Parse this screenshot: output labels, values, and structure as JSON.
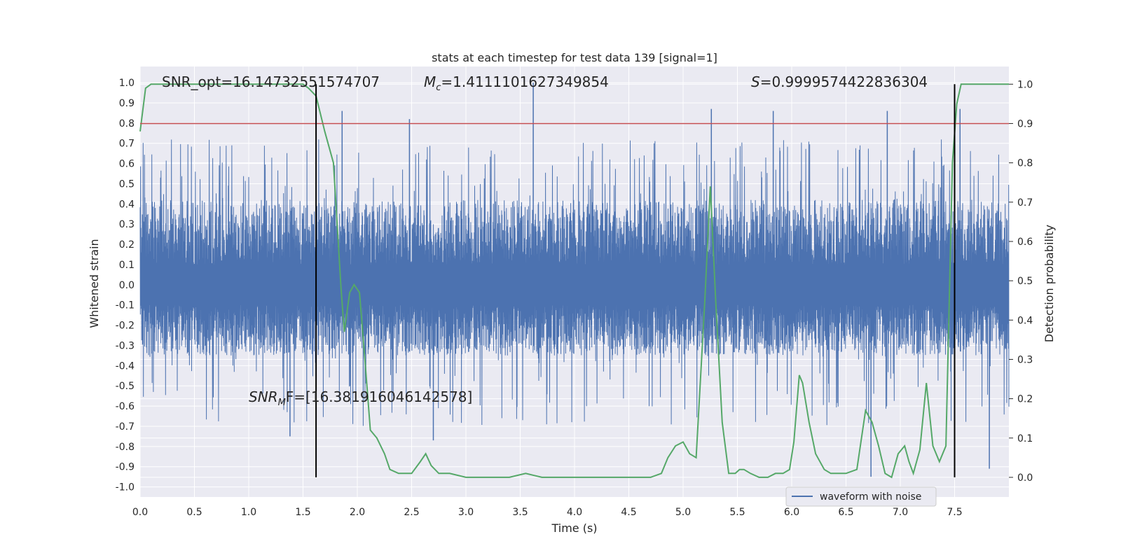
{
  "chart_data": {
    "type": "line",
    "title": "stats at each timestep for test data 139 [signal=1]",
    "xlabel": "Time (s)",
    "ylabel": "Whitened strain",
    "ylabel_right": "Detection probability",
    "xlim": [
      0.0,
      8.0
    ],
    "ylim": [
      -1.05,
      1.08
    ],
    "ylim_right": [
      -0.05,
      1.045
    ],
    "xticks": [
      "0.0",
      "0.5",
      "1.0",
      "1.5",
      "2.0",
      "2.5",
      "3.0",
      "3.5",
      "4.0",
      "4.5",
      "5.0",
      "5.5",
      "6.0",
      "6.5",
      "7.0",
      "7.5"
    ],
    "yticks": [
      "1.0",
      "0.9",
      "0.8",
      "0.7",
      "0.6",
      "0.5",
      "0.4",
      "0.3",
      "0.2",
      "0.1",
      "0.0",
      "-0.1",
      "-0.2",
      "-0.3",
      "-0.4",
      "-0.5",
      "-0.6",
      "-0.7",
      "-0.8",
      "-0.9",
      "-1.0"
    ],
    "yticks_right": [
      "1.0",
      "0.9",
      "0.8",
      "0.7",
      "0.6",
      "0.5",
      "0.4",
      "0.3",
      "0.2",
      "0.1",
      "0.0"
    ],
    "grid": true,
    "legend_placement": "lower-right",
    "annotations": {
      "snr_opt": "SNR_opt=16.14732551574707",
      "mc_symbol": "M",
      "mc_sub": "c",
      "mc_value": "=1.4111101627349854",
      "s_symbol": "S",
      "s_value": "=0.9999574422836304",
      "snr_mf_symbol": "SNR",
      "snr_mf_sub": "M",
      "snr_mf_value": "F=[16.381916046142578]"
    },
    "series": [
      {
        "name": "waveform with noise",
        "color": "#4c72b0",
        "axis": "left",
        "envelope_typical": [
          -0.35,
          0.42
        ],
        "peaks": [
          {
            "x": 1.86,
            "y": 0.86
          },
          {
            "x": 3.62,
            "y": 1.0
          },
          {
            "x": 2.48,
            "y": 0.82
          },
          {
            "x": 5.26,
            "y": 0.87
          },
          {
            "x": 5.83,
            "y": 0.86
          },
          {
            "x": 6.88,
            "y": 0.86
          },
          {
            "x": 7.55,
            "y": 0.87
          },
          {
            "x": 1.38,
            "y": -0.75
          },
          {
            "x": 2.7,
            "y": -0.77
          },
          {
            "x": 7.82,
            "y": -0.91
          },
          {
            "x": 6.73,
            "y": -0.95
          }
        ]
      },
      {
        "color": "#55a868",
        "axis": "right",
        "x": [
          0.0,
          0.05,
          0.1,
          0.2,
          0.4,
          0.6,
          0.8,
          1.0,
          1.2,
          1.4,
          1.5,
          1.55,
          1.62,
          1.7,
          1.78,
          1.85,
          1.88,
          1.93,
          1.97,
          2.02,
          2.07,
          2.12,
          2.18,
          2.25,
          2.3,
          2.38,
          2.44,
          2.5,
          2.58,
          2.63,
          2.68,
          2.75,
          2.85,
          3.0,
          3.2,
          3.4,
          3.55,
          3.7,
          3.85,
          4.0,
          4.15,
          4.3,
          4.5,
          4.7,
          4.8,
          4.86,
          4.93,
          5.0,
          5.06,
          5.12,
          5.2,
          5.25,
          5.3,
          5.36,
          5.42,
          5.48,
          5.52,
          5.56,
          5.62,
          5.7,
          5.78,
          5.85,
          5.92,
          5.98,
          6.02,
          6.07,
          6.1,
          6.16,
          6.22,
          6.3,
          6.36,
          6.42,
          6.5,
          6.6,
          6.68,
          6.74,
          6.8,
          6.86,
          6.92,
          6.98,
          7.04,
          7.08,
          7.12,
          7.18,
          7.24,
          7.3,
          7.36,
          7.42,
          7.48,
          7.52,
          7.56,
          7.6,
          7.7,
          8.0
        ],
        "values": [
          0.88,
          0.99,
          1.0,
          1.0,
          1.0,
          1.0,
          1.0,
          1.0,
          1.0,
          1.0,
          1.0,
          0.99,
          0.97,
          0.88,
          0.8,
          0.48,
          0.37,
          0.47,
          0.49,
          0.47,
          0.3,
          0.12,
          0.1,
          0.06,
          0.02,
          0.01,
          0.01,
          0.01,
          0.04,
          0.06,
          0.03,
          0.01,
          0.01,
          0.0,
          0.0,
          0.0,
          0.01,
          0.0,
          0.0,
          0.0,
          0.0,
          0.0,
          0.0,
          0.0,
          0.01,
          0.05,
          0.08,
          0.09,
          0.06,
          0.05,
          0.45,
          0.74,
          0.45,
          0.14,
          0.01,
          0.01,
          0.02,
          0.02,
          0.01,
          0.0,
          0.0,
          0.01,
          0.01,
          0.02,
          0.09,
          0.26,
          0.24,
          0.14,
          0.06,
          0.02,
          0.01,
          0.01,
          0.01,
          0.02,
          0.17,
          0.14,
          0.08,
          0.01,
          0.0,
          0.06,
          0.08,
          0.04,
          0.01,
          0.07,
          0.24,
          0.08,
          0.04,
          0.08,
          0.8,
          0.95,
          1.0,
          1.0,
          1.0,
          1.0
        ]
      }
    ],
    "threshold_line": {
      "color": "#c44e52",
      "axis": "right",
      "value": 0.9
    },
    "vertical_markers": {
      "color": "#000000",
      "x": [
        1.62,
        7.5
      ],
      "ymin_right": 0.0,
      "ymax_right": 1.0
    }
  }
}
